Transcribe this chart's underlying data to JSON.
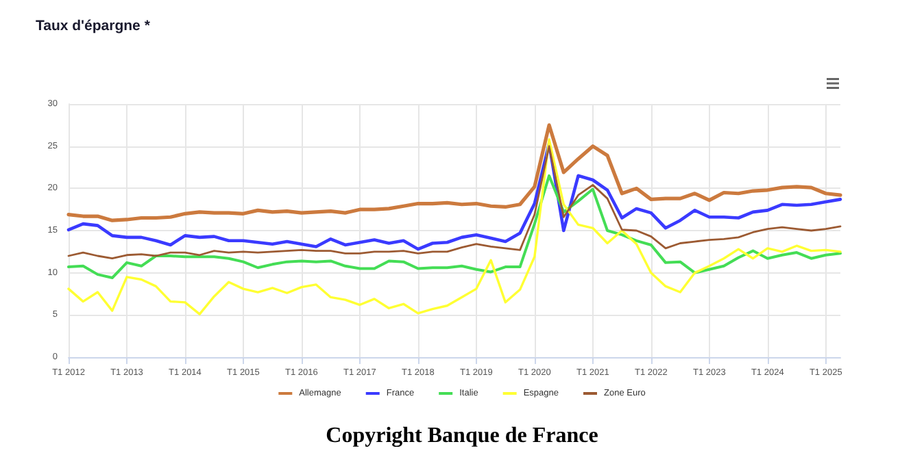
{
  "chart_data": {
    "type": "line",
    "title": "Taux d'épargne *",
    "categories": [
      "T1 2012",
      null,
      null,
      null,
      "T1 2013",
      null,
      null,
      null,
      "T1 2014",
      null,
      null,
      null,
      "T1 2015",
      null,
      null,
      null,
      "T1 2016",
      null,
      null,
      null,
      "T1 2017",
      null,
      null,
      null,
      "T1 2018",
      null,
      null,
      null,
      "T1 2019",
      null,
      null,
      null,
      "T1 2020",
      null,
      null,
      null,
      "T1 2021",
      null,
      null,
      null,
      "T1 2022",
      null,
      null,
      null,
      "T1 2023",
      null,
      null,
      null,
      "T1 2024",
      null,
      null,
      null,
      "T1 2025",
      null
    ],
    "series": [
      {
        "name": "Allemagne",
        "color": "#cc7a3e",
        "values": [
          16.9,
          16.7,
          16.7,
          16.2,
          16.3,
          16.5,
          16.5,
          16.6,
          17.0,
          17.2,
          17.1,
          17.1,
          17.0,
          17.4,
          17.2,
          17.3,
          17.1,
          17.2,
          17.3,
          17.1,
          17.5,
          17.5,
          17.6,
          17.9,
          18.2,
          18.2,
          18.3,
          18.1,
          18.2,
          17.9,
          17.8,
          18.1,
          20.2,
          27.5,
          21.9,
          23.5,
          25.0,
          23.9,
          19.4,
          20.0,
          18.7,
          18.8,
          18.8,
          19.4,
          18.6,
          19.5,
          19.4,
          19.7,
          19.8,
          20.1,
          20.2,
          20.1,
          19.4,
          19.2
        ]
      },
      {
        "name": "France",
        "color": "#3a3aff",
        "values": [
          15.1,
          15.8,
          15.6,
          14.4,
          14.2,
          14.2,
          13.8,
          13.3,
          14.4,
          14.2,
          14.3,
          13.8,
          13.8,
          13.6,
          13.4,
          13.7,
          13.4,
          13.1,
          14.0,
          13.3,
          13.6,
          13.9,
          13.5,
          13.8,
          12.8,
          13.5,
          13.6,
          14.2,
          14.5,
          14.1,
          13.7,
          14.7,
          18.2,
          25.3,
          15.0,
          21.5,
          21.0,
          19.8,
          16.5,
          17.6,
          17.1,
          15.3,
          16.2,
          17.4,
          16.6,
          16.6,
          16.5,
          17.2,
          17.4,
          18.1,
          18.0,
          18.1,
          18.4,
          18.7
        ]
      },
      {
        "name": "Italie",
        "color": "#44dd55",
        "values": [
          10.7,
          10.8,
          9.8,
          9.4,
          11.2,
          10.8,
          12.0,
          12.0,
          11.9,
          11.9,
          11.9,
          11.7,
          11.3,
          10.6,
          11.0,
          11.3,
          11.4,
          11.3,
          11.4,
          10.8,
          10.5,
          10.5,
          11.4,
          11.3,
          10.5,
          10.6,
          10.6,
          10.8,
          10.4,
          10.1,
          10.7,
          10.7,
          15.8,
          21.5,
          17.2,
          18.5,
          19.9,
          15.0,
          14.5,
          13.8,
          13.3,
          11.2,
          11.3,
          10.0,
          10.4,
          10.8,
          11.8,
          12.6,
          11.7,
          12.1,
          12.4,
          11.7,
          12.1,
          12.3
        ]
      },
      {
        "name": "Espagne",
        "color": "#ffff33",
        "values": [
          8.1,
          6.6,
          7.7,
          5.5,
          9.5,
          9.2,
          8.4,
          6.6,
          6.5,
          5.1,
          7.2,
          8.9,
          8.1,
          7.7,
          8.2,
          7.6,
          8.3,
          8.6,
          7.1,
          6.8,
          6.2,
          6.9,
          5.8,
          6.3,
          5.2,
          5.7,
          6.1,
          7.1,
          8.1,
          11.5,
          6.5,
          8.0,
          11.9,
          25.8,
          18.1,
          15.7,
          15.3,
          13.5,
          15.0,
          13.4,
          10.0,
          8.4,
          7.7,
          10.0,
          10.8,
          11.7,
          12.8,
          11.7,
          12.9,
          12.5,
          13.2,
          12.6,
          12.7,
          12.5
        ]
      },
      {
        "name": "Zone Euro",
        "color": "#9c5a32",
        "values": [
          12.0,
          12.4,
          12.0,
          11.7,
          12.1,
          12.2,
          12.0,
          12.4,
          12.4,
          12.1,
          12.6,
          12.4,
          12.5,
          12.4,
          12.5,
          12.6,
          12.7,
          12.6,
          12.6,
          12.3,
          12.3,
          12.5,
          12.5,
          12.6,
          12.3,
          12.5,
          12.5,
          13.0,
          13.4,
          13.1,
          12.9,
          12.7,
          16.9,
          25.0,
          16.6,
          19.2,
          20.4,
          18.8,
          15.1,
          15.0,
          14.3,
          12.9,
          13.5,
          13.7,
          13.9,
          14.0,
          14.2,
          14.8,
          15.2,
          15.4,
          15.2,
          15.0,
          15.2,
          15.5
        ]
      }
    ],
    "ylim": [
      0,
      30
    ],
    "yticks": [
      0,
      5,
      10,
      15,
      20,
      25,
      30
    ],
    "grid": true,
    "legend": "bottom",
    "marker": "none",
    "line_style": "solid",
    "annotations": [
      "Copyright Banque de France"
    ]
  }
}
